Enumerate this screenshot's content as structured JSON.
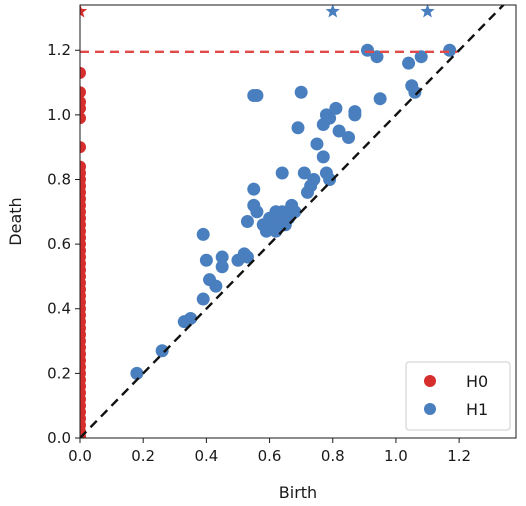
{
  "chart_data": {
    "type": "scatter",
    "title": "",
    "xlabel": "Birth",
    "ylabel": "Death",
    "xlim": [
      0.0,
      1.38
    ],
    "ylim": [
      0.0,
      1.34
    ],
    "xticks": [
      "0.0",
      "0.2",
      "0.4",
      "0.6",
      "0.8",
      "1.0",
      "1.2"
    ],
    "yticks": [
      "0.0",
      "0.2",
      "0.4",
      "0.6",
      "0.8",
      "1.0",
      "1.2"
    ],
    "grid": false,
    "legend_position": "bottom-right",
    "diagonal": {
      "style": "dashed",
      "color": "#111111"
    },
    "infinity_line": {
      "y": 1.195,
      "style": "dashed",
      "color": "#e24a4a"
    },
    "infinity_markers": [
      {
        "series": "H1",
        "x": 0.8,
        "y": 1.32
      },
      {
        "series": "H1",
        "x": 1.1,
        "y": 1.32
      },
      {
        "series": "H0",
        "x": 0.0,
        "y": 1.32
      }
    ],
    "series": [
      {
        "name": "H0",
        "color": "#d62d2d",
        "points": [
          [
            0,
            1.13
          ],
          [
            0,
            1.07
          ],
          [
            0,
            1.04
          ],
          [
            0,
            1.02
          ],
          [
            0,
            0.99
          ],
          [
            0,
            0.9
          ],
          [
            0,
            0.84
          ],
          [
            0,
            0.82
          ],
          [
            0,
            0.8
          ],
          [
            0,
            0.78
          ],
          [
            0,
            0.76
          ],
          [
            0,
            0.74
          ],
          [
            0,
            0.72
          ],
          [
            0,
            0.7
          ],
          [
            0,
            0.68
          ],
          [
            0,
            0.66
          ],
          [
            0,
            0.64
          ],
          [
            0,
            0.62
          ],
          [
            0,
            0.6
          ],
          [
            0,
            0.58
          ],
          [
            0,
            0.56
          ],
          [
            0,
            0.54
          ],
          [
            0,
            0.52
          ],
          [
            0,
            0.5
          ],
          [
            0,
            0.48
          ],
          [
            0,
            0.46
          ],
          [
            0,
            0.44
          ],
          [
            0,
            0.42
          ],
          [
            0,
            0.4
          ],
          [
            0,
            0.38
          ],
          [
            0,
            0.36
          ],
          [
            0,
            0.34
          ],
          [
            0,
            0.32
          ],
          [
            0,
            0.3
          ],
          [
            0,
            0.28
          ],
          [
            0,
            0.26
          ],
          [
            0,
            0.24
          ],
          [
            0,
            0.22
          ],
          [
            0,
            0.2
          ],
          [
            0,
            0.18
          ],
          [
            0,
            0.16
          ],
          [
            0,
            0.14
          ],
          [
            0,
            0.12
          ],
          [
            0,
            0.1
          ],
          [
            0,
            0.08
          ],
          [
            0,
            0.06
          ],
          [
            0,
            0.04
          ],
          [
            0,
            0.02
          ],
          [
            0,
            0.005
          ]
        ]
      },
      {
        "name": "H1",
        "color": "#4a7fbf",
        "points": [
          [
            0.18,
            0.2
          ],
          [
            0.26,
            0.27
          ],
          [
            0.33,
            0.36
          ],
          [
            0.35,
            0.37
          ],
          [
            0.39,
            0.43
          ],
          [
            0.41,
            0.49
          ],
          [
            0.43,
            0.47
          ],
          [
            0.4,
            0.55
          ],
          [
            0.45,
            0.56
          ],
          [
            0.45,
            0.53
          ],
          [
            0.5,
            0.55
          ],
          [
            0.52,
            0.57
          ],
          [
            0.53,
            0.56
          ],
          [
            0.39,
            0.63
          ],
          [
            0.53,
            0.67
          ],
          [
            0.55,
            0.72
          ],
          [
            0.56,
            0.7
          ],
          [
            0.55,
            0.77
          ],
          [
            0.58,
            0.66
          ],
          [
            0.59,
            0.64
          ],
          [
            0.6,
            0.68
          ],
          [
            0.61,
            0.65
          ],
          [
            0.62,
            0.7
          ],
          [
            0.62,
            0.64
          ],
          [
            0.63,
            0.67
          ],
          [
            0.64,
            0.7
          ],
          [
            0.65,
            0.66
          ],
          [
            0.66,
            0.68
          ],
          [
            0.67,
            0.72
          ],
          [
            0.68,
            0.7
          ],
          [
            0.64,
            0.82
          ],
          [
            0.71,
            0.82
          ],
          [
            0.72,
            0.76
          ],
          [
            0.73,
            0.78
          ],
          [
            0.74,
            0.8
          ],
          [
            0.75,
            0.91
          ],
          [
            0.77,
            0.87
          ],
          [
            0.78,
            0.82
          ],
          [
            0.79,
            0.8
          ],
          [
            0.77,
            0.97
          ],
          [
            0.78,
            1.0
          ],
          [
            0.79,
            0.99
          ],
          [
            0.81,
            1.02
          ],
          [
            0.82,
            0.95
          ],
          [
            0.85,
            0.93
          ],
          [
            0.87,
            1.01
          ],
          [
            0.87,
            1.0
          ],
          [
            0.69,
            0.96
          ],
          [
            0.7,
            1.07
          ],
          [
            0.55,
            1.06
          ],
          [
            0.56,
            1.06
          ],
          [
            0.91,
            1.2
          ],
          [
            0.94,
            1.18
          ],
          [
            0.95,
            1.05
          ],
          [
            1.04,
            1.16
          ],
          [
            1.05,
            1.09
          ],
          [
            1.06,
            1.07
          ],
          [
            1.08,
            1.18
          ],
          [
            1.17,
            1.2
          ]
        ]
      }
    ],
    "legend": [
      {
        "label": "H0",
        "color": "#d62d2d"
      },
      {
        "label": "H1",
        "color": "#4a7fbf"
      }
    ]
  }
}
